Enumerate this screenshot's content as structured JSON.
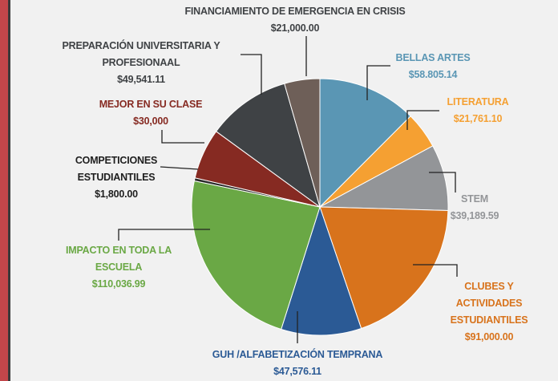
{
  "chart_data": {
    "type": "pie",
    "categories": [
      "BELLAS ARTES",
      "LITERATURA",
      "STEM",
      "CLUBES Y ACTIVIDADES ESTUDIANTILES",
      "GUH /ALFABETIZACIÓN TEMPRANA",
      "IMPACTO EN TODA LA ESCUELA",
      "COMPETICIONES ESTUDIANTILES",
      "MEJOR EN SU CLASE",
      "PREPARACIÓN UNIVERSITARIA Y PROFESIONAAL",
      "FINANCIAMIENTO DE EMERGENCIA EN CRISIS"
    ],
    "values": [
      58805.14,
      21761.1,
      39189.59,
      91000.0,
      47576.11,
      110036.99,
      1800.0,
      30000,
      49541.11,
      21000.0
    ],
    "value_labels": [
      "$58.805.14",
      "$21,761.10",
      "$39,189.59",
      "$91,000.00",
      "$47,576.11",
      "$110,036.99",
      "$1,800.00",
      "$30,000",
      "$49,541.11",
      "$21,000.00"
    ],
    "colors": [
      "#5a96b4",
      "#f5a032",
      "#939598",
      "#d8731c",
      "#2b5a95",
      "#6aa845",
      "#2a2a2a",
      "#862a22",
      "#3f4245",
      "#6e5f58"
    ]
  }
}
